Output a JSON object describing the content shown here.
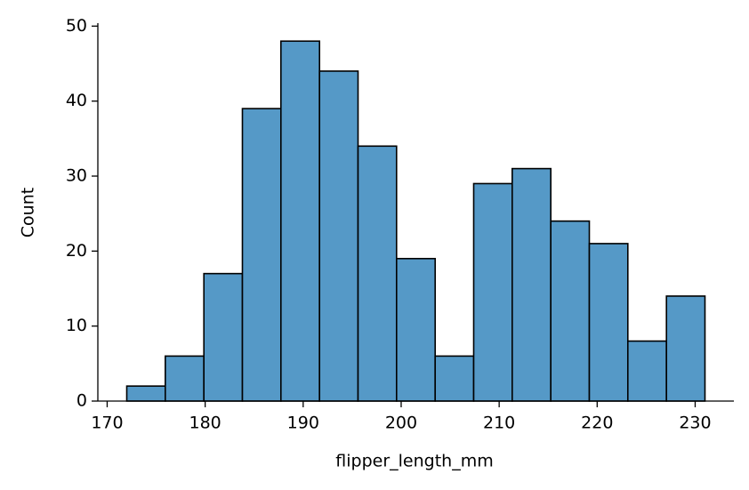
{
  "chart_data": {
    "type": "histogram",
    "x_label": "flipper_length_mm",
    "y_label": "Count",
    "bins": [
      172,
      175.93,
      179.87,
      183.8,
      187.73,
      191.67,
      195.6,
      199.53,
      203.47,
      207.4,
      211.33,
      215.27,
      219.2,
      223.13,
      227.07,
      231
    ],
    "values": [
      2,
      6,
      17,
      39,
      48,
      44,
      34,
      19,
      6,
      29,
      31,
      24,
      21,
      8,
      14
    ],
    "color": "#5599c7",
    "edge_color": "#000000",
    "xlim": [
      169.05,
      233.95
    ],
    "xticks": [
      170,
      180,
      190,
      200,
      210,
      220,
      230
    ],
    "ylim": [
      0,
      50.4
    ],
    "yticks": [
      0,
      10,
      20,
      30,
      40,
      50
    ]
  }
}
